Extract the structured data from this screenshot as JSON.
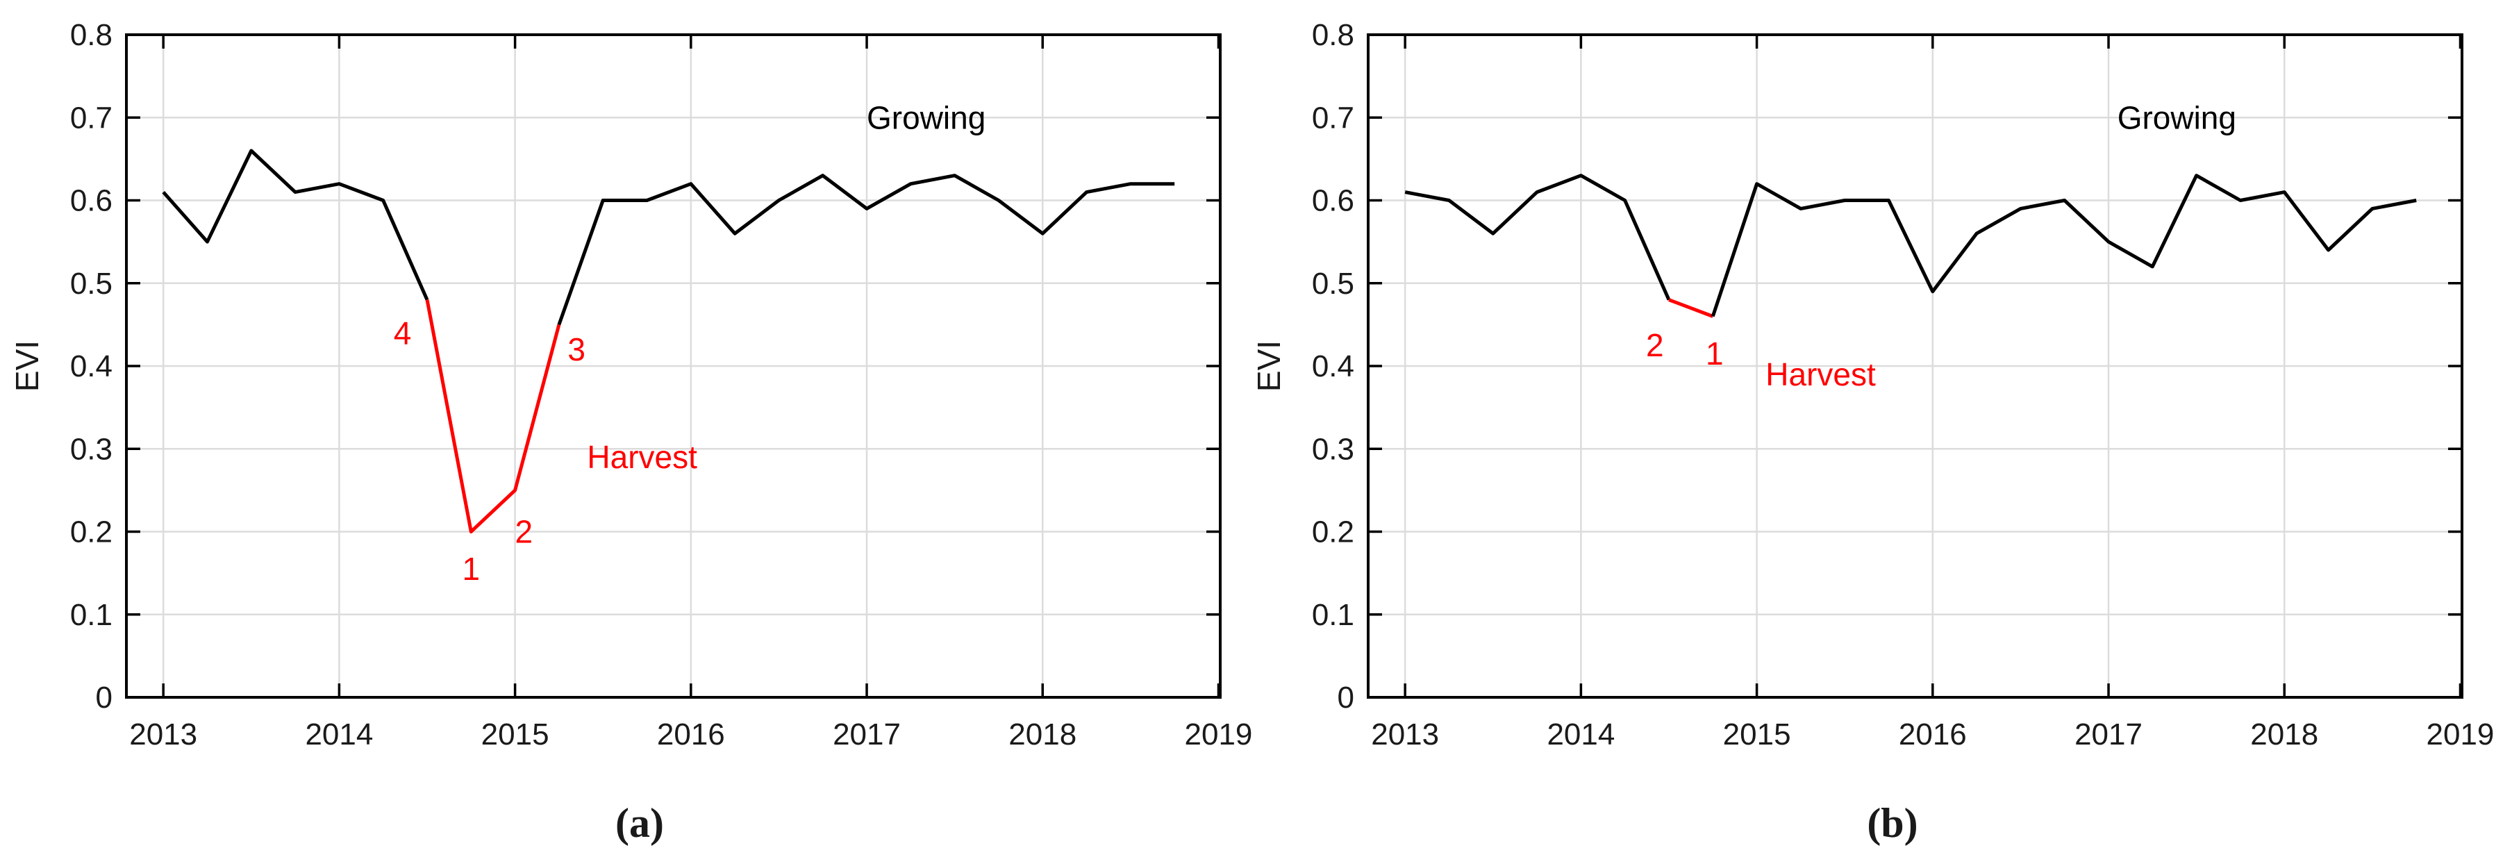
{
  "figure": {
    "background": "#ffffff",
    "colors": {
      "line": "#000000",
      "highlight": "#ff0000",
      "grid": "#dcdcdc",
      "axis": "#000000",
      "text": "#1a1a1a"
    }
  },
  "chart_data": [
    {
      "id": "a",
      "type": "line",
      "caption": "(a)",
      "title": "",
      "xlabel": "",
      "ylabel": "EVI",
      "xlim": [
        2012.79,
        2019.01
      ],
      "ylim": [
        0,
        0.8
      ],
      "grid": true,
      "xticks": [
        2013,
        2014,
        2015,
        2016,
        2017,
        2018,
        2019
      ],
      "xtick_labels": [
        "2013",
        "2014",
        "2015",
        "2016",
        "2017",
        "2018",
        "2019"
      ],
      "yticks": [
        0,
        0.1,
        0.2,
        0.3,
        0.4,
        0.5,
        0.6,
        0.7,
        0.8
      ],
      "ytick_labels": [
        "0",
        "0.1",
        "0.2",
        "0.3",
        "0.4",
        "0.5",
        "0.6",
        "0.7",
        "0.8"
      ],
      "x": [
        2013.0,
        2013.25,
        2013.5,
        2013.75,
        2014.0,
        2014.25,
        2014.5,
        2014.75,
        2015.0,
        2015.25,
        2015.5,
        2015.75,
        2016.0,
        2016.25,
        2016.5,
        2016.75,
        2017.0,
        2017.25,
        2017.5,
        2017.75,
        2018.0,
        2018.25,
        2018.5,
        2018.75
      ],
      "y": [
        0.61,
        0.55,
        0.66,
        0.61,
        0.62,
        0.6,
        0.48,
        0.2,
        0.25,
        0.45,
        0.6,
        0.6,
        0.62,
        0.56,
        0.6,
        0.63,
        0.59,
        0.62,
        0.63,
        0.6,
        0.56,
        0.61,
        0.62,
        0.62
      ],
      "line_color": "#000000",
      "highlight_color": "#ff0000",
      "highlight_range": [
        6,
        9
      ],
      "annotations": [
        {
          "text": "4",
          "x": 2014.36,
          "y": 0.44,
          "color": "#ff0000",
          "anchor": "middle"
        },
        {
          "text": "1",
          "x": 2014.75,
          "y": 0.155,
          "color": "#ff0000",
          "anchor": "middle"
        },
        {
          "text": "2",
          "x": 2015.05,
          "y": 0.2,
          "color": "#ff0000",
          "anchor": "middle"
        },
        {
          "text": "3",
          "x": 2015.35,
          "y": 0.42,
          "color": "#ff0000",
          "anchor": "middle"
        },
        {
          "text": "Harvest",
          "x": 2015.41,
          "y": 0.29,
          "color": "#ff0000",
          "anchor": "start"
        },
        {
          "text": "Growing",
          "x": 2017.0,
          "y": 0.7,
          "color": "#000000",
          "anchor": "start"
        }
      ]
    },
    {
      "id": "b",
      "type": "line",
      "caption": "(b)",
      "title": "",
      "xlabel": "",
      "ylabel": "EVI",
      "xlim": [
        2012.79,
        2019.01
      ],
      "ylim": [
        0,
        0.8
      ],
      "grid": true,
      "xticks": [
        2013,
        2014,
        2015,
        2016,
        2017,
        2018,
        2019
      ],
      "xtick_labels": [
        "2013",
        "2014",
        "2015",
        "2016",
        "2017",
        "2018",
        "2019"
      ],
      "yticks": [
        0,
        0.1,
        0.2,
        0.3,
        0.4,
        0.5,
        0.6,
        0.7,
        0.8
      ],
      "ytick_labels": [
        "0",
        "0.1",
        "0.2",
        "0.3",
        "0.4",
        "0.5",
        "0.6",
        "0.7",
        "0.8"
      ],
      "x": [
        2013.0,
        2013.25,
        2013.5,
        2013.75,
        2014.0,
        2014.25,
        2014.5,
        2014.75,
        2015.0,
        2015.25,
        2015.5,
        2015.75,
        2016.0,
        2016.25,
        2016.5,
        2016.75,
        2017.0,
        2017.25,
        2017.5,
        2017.75,
        2018.0,
        2018.25,
        2018.5,
        2018.75
      ],
      "y": [
        0.61,
        0.6,
        0.56,
        0.61,
        0.63,
        0.6,
        0.48,
        0.46,
        0.62,
        0.59,
        0.6,
        0.6,
        0.49,
        0.56,
        0.59,
        0.6,
        0.55,
        0.52,
        0.63,
        0.6,
        0.61,
        0.54,
        0.59,
        0.6
      ],
      "line_color": "#000000",
      "highlight_color": "#ff0000",
      "highlight_range": [
        6,
        7
      ],
      "annotations": [
        {
          "text": "2",
          "x": 2014.42,
          "y": 0.425,
          "color": "#ff0000",
          "anchor": "middle"
        },
        {
          "text": "1",
          "x": 2014.76,
          "y": 0.415,
          "color": "#ff0000",
          "anchor": "middle"
        },
        {
          "text": "Harvest",
          "x": 2015.05,
          "y": 0.39,
          "color": "#ff0000",
          "anchor": "start"
        },
        {
          "text": "Growing",
          "x": 2017.05,
          "y": 0.7,
          "color": "#000000",
          "anchor": "start"
        }
      ]
    }
  ]
}
